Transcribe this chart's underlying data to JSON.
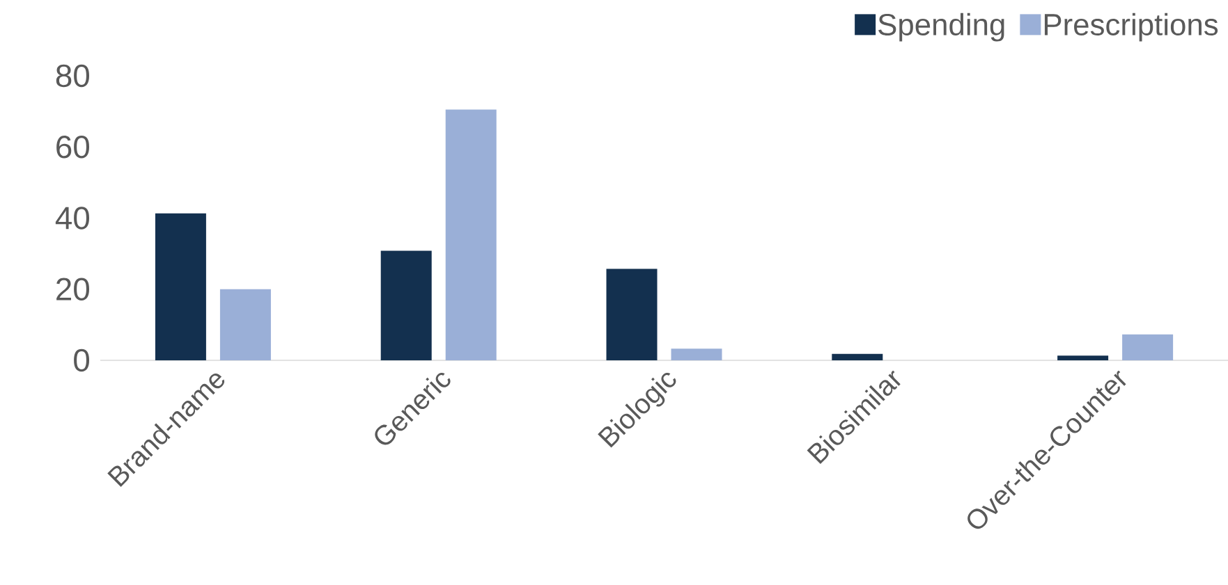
{
  "chart_data": {
    "type": "bar",
    "categories": [
      "Brand-name",
      "Generic",
      "Biologic",
      "Biosimilar",
      "Over-the-Counter"
    ],
    "series": [
      {
        "name": "Spending",
        "color": "#13304f",
        "values": [
          41.3,
          30.8,
          25.7,
          1.8,
          1.3
        ]
      },
      {
        "name": "Prescriptions",
        "color": "#9aafd7",
        "values": [
          20,
          70.5,
          3.3,
          0,
          7.3
        ]
      }
    ],
    "ylim": [
      0,
      80
    ],
    "yticks": [
      0,
      20,
      40,
      60,
      80
    ],
    "legend": "top right"
  }
}
